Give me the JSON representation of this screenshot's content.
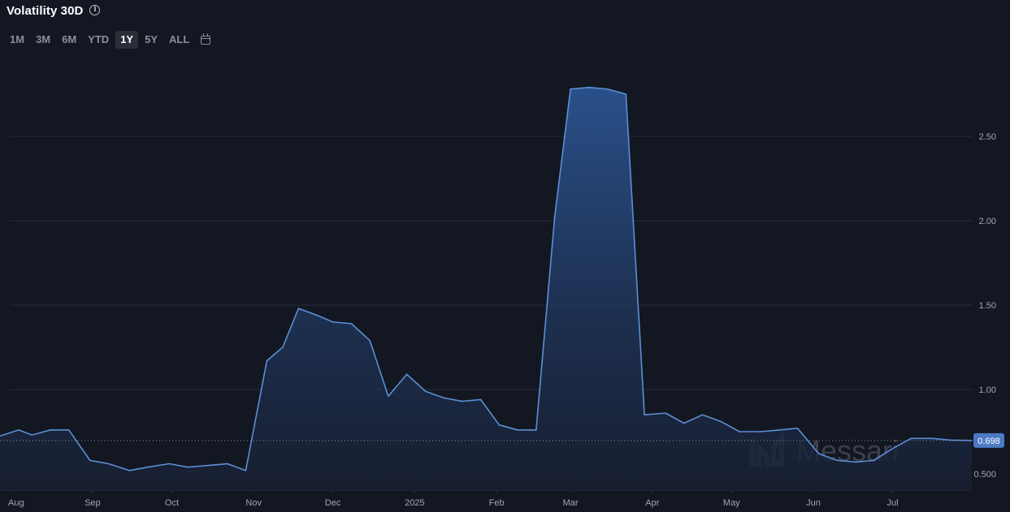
{
  "header": {
    "title": "Volatility 30D",
    "info_icon": "info-circle-icon",
    "calendar_icon": "calendar-icon"
  },
  "range_buttons": [
    {
      "label": "1M",
      "active": false
    },
    {
      "label": "3M",
      "active": false
    },
    {
      "label": "6M",
      "active": false
    },
    {
      "label": "YTD",
      "active": false
    },
    {
      "label": "1Y",
      "active": true
    },
    {
      "label": "5Y",
      "active": false
    },
    {
      "label": "ALL",
      "active": false
    }
  ],
  "watermark": "Messari",
  "colors": {
    "background": "#131722",
    "line": "#5b8fd6",
    "grid": "#2a2e39",
    "last_value_badge": "#4c7bc4"
  },
  "chart_data": {
    "type": "area",
    "title": "Volatility 30D",
    "xlabel": "",
    "ylabel": "",
    "x": [
      "2024-07-31",
      "2024-08-04",
      "2024-08-09",
      "2024-08-16",
      "2024-08-23",
      "2024-08-31",
      "2024-09-07",
      "2024-09-15",
      "2024-09-22",
      "2024-09-30",
      "2024-10-07",
      "2024-10-15",
      "2024-10-22",
      "2024-10-29",
      "2024-11-06",
      "2024-11-12",
      "2024-11-18",
      "2024-11-25",
      "2024-12-01",
      "2024-12-08",
      "2024-12-15",
      "2024-12-22",
      "2024-12-29",
      "2025-01-05",
      "2025-01-12",
      "2025-01-19",
      "2025-01-26",
      "2025-02-02",
      "2025-02-09",
      "2025-02-16",
      "2025-02-23",
      "2025-03-01",
      "2025-03-08",
      "2025-03-15",
      "2025-03-22",
      "2025-03-29",
      "2025-04-06",
      "2025-04-13",
      "2025-04-20",
      "2025-04-27",
      "2025-05-04",
      "2025-05-12",
      "2025-05-19",
      "2025-05-26",
      "2025-06-03",
      "2025-06-10",
      "2025-06-17",
      "2025-06-24",
      "2025-07-01",
      "2025-07-08",
      "2025-07-16",
      "2025-07-23",
      "2025-07-31"
    ],
    "series": [
      {
        "values": [
          0.74,
          0.76,
          0.73,
          0.76,
          0.76,
          0.58,
          0.56,
          0.52,
          0.54,
          0.56,
          0.54,
          0.55,
          0.56,
          0.52,
          1.17,
          1.25,
          1.48,
          1.44,
          1.4,
          1.39,
          1.29,
          0.96,
          1.09,
          0.99,
          0.95,
          0.93,
          0.94,
          0.79,
          0.76,
          0.76,
          2.02,
          2.78,
          2.79,
          2.78,
          2.75,
          0.85,
          0.86,
          0.8,
          0.85,
          0.81,
          0.75,
          0.75,
          0.76,
          0.77,
          0.62,
          0.58,
          0.57,
          0.58,
          0.65,
          0.71,
          0.71,
          0.7,
          0.698
        ]
      }
    ],
    "ylim": [
      0.4,
      2.95
    ],
    "yticks": [
      {
        "value": 2.5,
        "label": "2.50"
      },
      {
        "value": 2.0,
        "label": "2.00"
      },
      {
        "value": 1.5,
        "label": "1.50"
      },
      {
        "value": 1.0,
        "label": "1.00"
      },
      {
        "value": 0.5,
        "label": "0.500"
      }
    ],
    "xticks": [
      {
        "date": "2024-08-01",
        "label": "Aug"
      },
      {
        "date": "2024-09-01",
        "label": "Sep"
      },
      {
        "date": "2024-10-01",
        "label": "Oct"
      },
      {
        "date": "2024-11-01",
        "label": "Nov"
      },
      {
        "date": "2024-12-01",
        "label": "Dec"
      },
      {
        "date": "2025-01-01",
        "label": "2025"
      },
      {
        "date": "2025-02-01",
        "label": "Feb"
      },
      {
        "date": "2025-03-01",
        "label": "Mar"
      },
      {
        "date": "2025-04-01",
        "label": "Apr"
      },
      {
        "date": "2025-05-01",
        "label": "May"
      },
      {
        "date": "2025-06-01",
        "label": "Jun"
      },
      {
        "date": "2025-07-01",
        "label": "Jul"
      }
    ],
    "last_value": {
      "value": 0.698,
      "label": "0.698"
    },
    "grid": true,
    "legend": "none"
  }
}
